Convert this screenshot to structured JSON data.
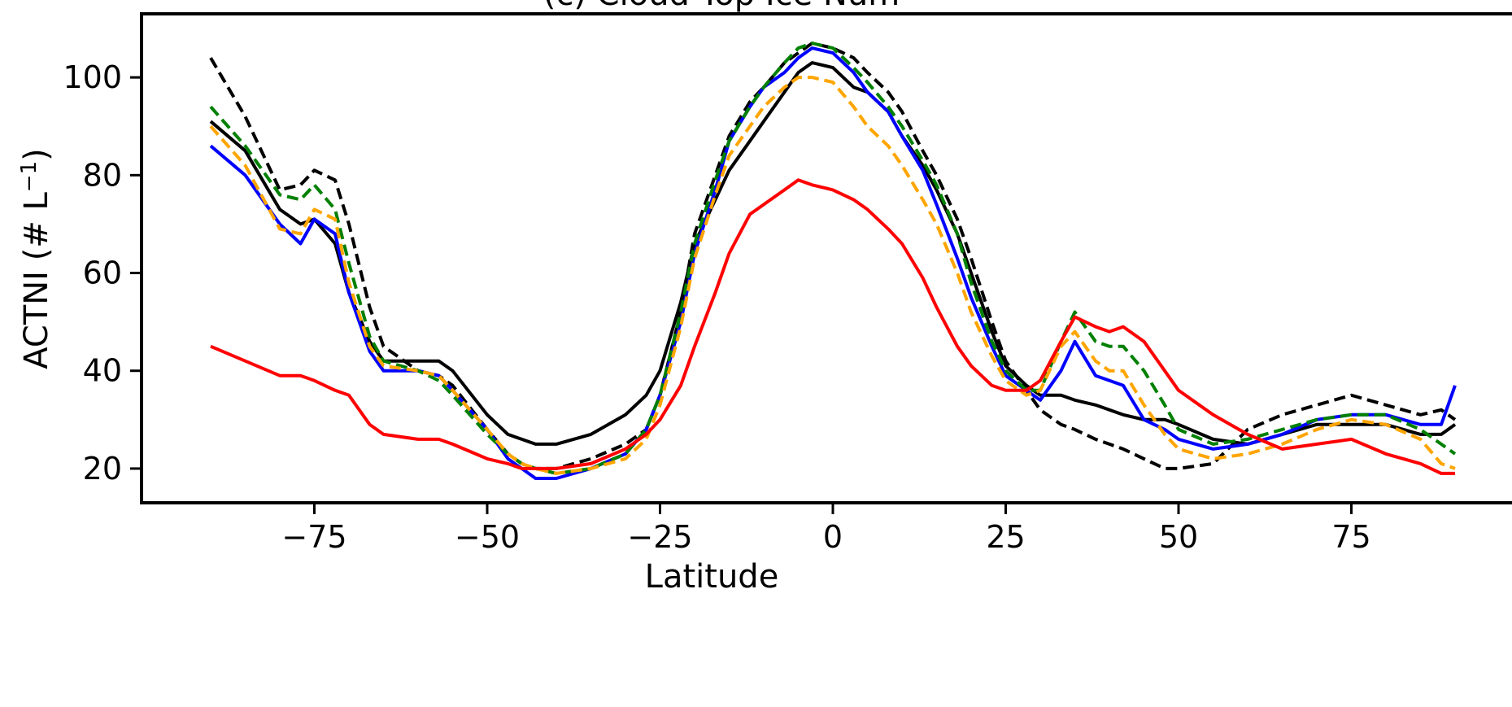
{
  "chart_data": {
    "type": "line",
    "title": "(c) Cloud Top Ice Num",
    "xlabel": "Latitude",
    "ylabel": "ACTNI (# L",
    "ylabel_sup": "−1",
    "ylabel_close": ")",
    "xlim": [
      -100,
      100
    ],
    "ylim": [
      13,
      113
    ],
    "x_ticks": [
      -75,
      -50,
      -25,
      0,
      25,
      50,
      75
    ],
    "x_tick_labels": [
      "−75",
      "−50",
      "−25",
      "0",
      "25",
      "50",
      "75"
    ],
    "y_ticks": [
      20,
      40,
      60,
      80,
      100
    ],
    "y_tick_labels": [
      "20",
      "40",
      "60",
      "80",
      "100"
    ],
    "grid": false,
    "x": [
      -90,
      -85,
      -80,
      -77,
      -75,
      -72,
      -70,
      -67,
      -65,
      -60,
      -57,
      -55,
      -50,
      -47,
      -45,
      -43,
      -40,
      -35,
      -30,
      -27,
      -25,
      -22,
      -20,
      -17,
      -15,
      -12,
      -10,
      -7,
      -5,
      -3,
      0,
      3,
      5,
      8,
      10,
      13,
      15,
      18,
      20,
      23,
      25,
      28,
      30,
      33,
      35,
      38,
      40,
      42,
      45,
      48,
      50,
      55,
      60,
      65,
      70,
      75,
      80,
      85,
      88,
      90
    ],
    "series": [
      {
        "color": "#000000",
        "dashed": false,
        "values": [
          91,
          85,
          73,
          70,
          71,
          66,
          56,
          46,
          42,
          42,
          42,
          40,
          31,
          27,
          26,
          25,
          25,
          27,
          31,
          35,
          40,
          54,
          66,
          75,
          81,
          87,
          91,
          97,
          101,
          103,
          102,
          98,
          97,
          93,
          88,
          82,
          77,
          68,
          60,
          48,
          41,
          37,
          35,
          35,
          34,
          33,
          32,
          31,
          30,
          30,
          29,
          26,
          25,
          27,
          29,
          29,
          29,
          27,
          27,
          29
        ]
      },
      {
        "color": "#000000",
        "dashed": true,
        "values": [
          104,
          92,
          77,
          78,
          81,
          79,
          70,
          53,
          45,
          40,
          39,
          37,
          28,
          23,
          21,
          20,
          20,
          22,
          25,
          28,
          35,
          52,
          68,
          80,
          88,
          95,
          98,
          103,
          105,
          107,
          106,
          104,
          101,
          97,
          93,
          85,
          80,
          71,
          63,
          50,
          42,
          36,
          32,
          29,
          28,
          26,
          25,
          24,
          22,
          20,
          20,
          21,
          28,
          31,
          33,
          35,
          33,
          31,
          32,
          30
        ]
      },
      {
        "color": "#0000ff",
        "dashed": false,
        "values": [
          86,
          80,
          70,
          66,
          71,
          68,
          56,
          44,
          40,
          40,
          39,
          36,
          28,
          22,
          20,
          18,
          18,
          20,
          23,
          28,
          35,
          50,
          64,
          77,
          87,
          94,
          98,
          101,
          104,
          106,
          105,
          101,
          97,
          93,
          88,
          81,
          74,
          63,
          55,
          45,
          39,
          36,
          34,
          40,
          46,
          39,
          38,
          37,
          30,
          28,
          26,
          24,
          25,
          27,
          30,
          31,
          31,
          29,
          29,
          37
        ]
      },
      {
        "color": "#008000",
        "dashed": true,
        "values": [
          94,
          86,
          76,
          75,
          78,
          73,
          62,
          47,
          42,
          40,
          38,
          35,
          27,
          23,
          21,
          20,
          19,
          20,
          23,
          28,
          35,
          52,
          66,
          79,
          87,
          94,
          98,
          103,
          106,
          107,
          106,
          102,
          99,
          94,
          90,
          83,
          78,
          68,
          58,
          46,
          40,
          36,
          36,
          46,
          52,
          46,
          45,
          45,
          40,
          33,
          28,
          25,
          26,
          28,
          30,
          31,
          31,
          28,
          25,
          23
        ]
      },
      {
        "color": "#ffa500",
        "dashed": true,
        "values": [
          90,
          82,
          69,
          68,
          73,
          71,
          58,
          45,
          41,
          40,
          39,
          36,
          28,
          23,
          21,
          20,
          19,
          20,
          22,
          26,
          33,
          49,
          63,
          76,
          84,
          90,
          94,
          98,
          100,
          100,
          99,
          94,
          90,
          86,
          82,
          75,
          70,
          60,
          52,
          43,
          38,
          35,
          36,
          45,
          48,
          42,
          40,
          40,
          33,
          27,
          24,
          22,
          23,
          25,
          28,
          30,
          29,
          26,
          21,
          20
        ]
      },
      {
        "color": "#ff0000",
        "dashed": false,
        "values": [
          45,
          42,
          39,
          39,
          38,
          36,
          35,
          29,
          27,
          26,
          26,
          25,
          22,
          21,
          20,
          20,
          20,
          21,
          24,
          27,
          30,
          37,
          45,
          56,
          64,
          72,
          74,
          77,
          79,
          78,
          77,
          75,
          73,
          69,
          66,
          59,
          53,
          45,
          41,
          37,
          36,
          36,
          38,
          46,
          51,
          49,
          48,
          49,
          46,
          40,
          36,
          31,
          27,
          24,
          25,
          26,
          23,
          21,
          19,
          19
        ]
      }
    ]
  }
}
